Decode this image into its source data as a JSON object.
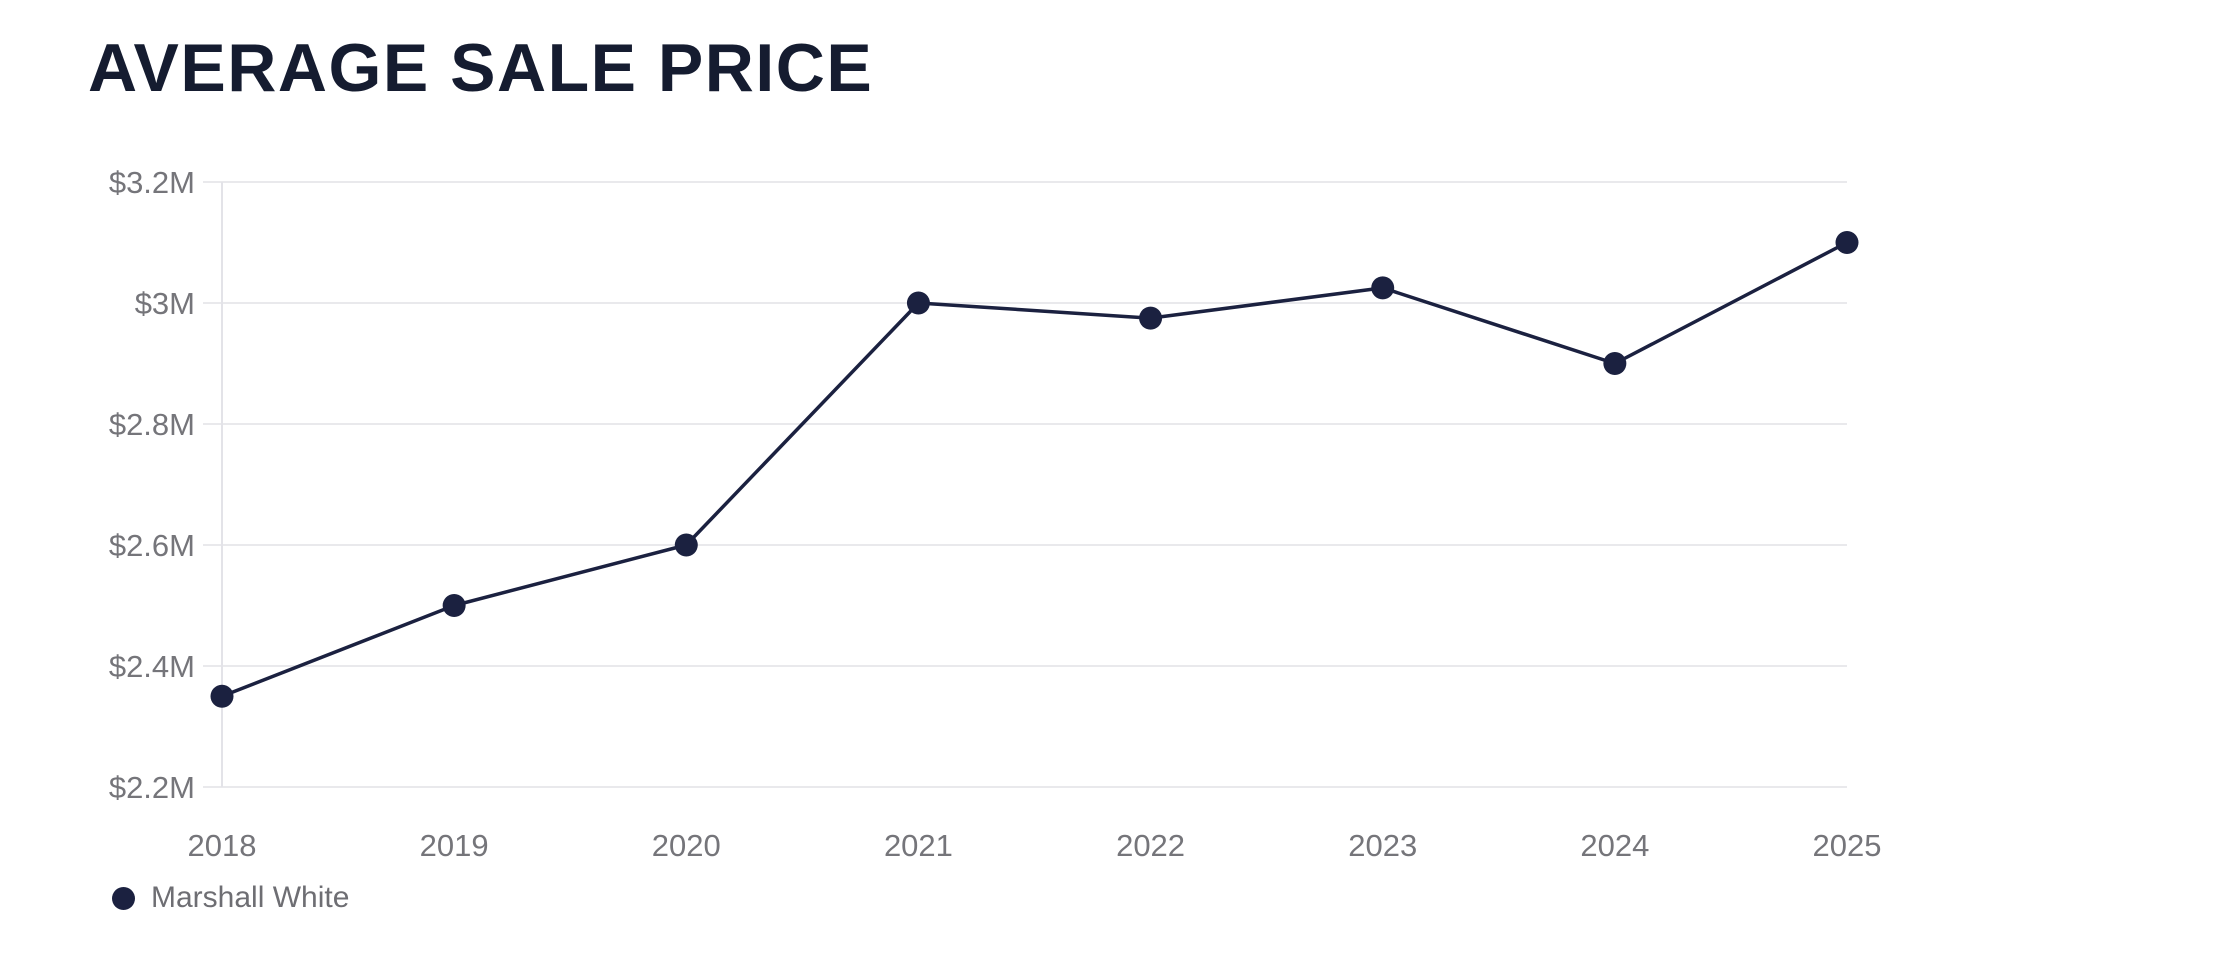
{
  "title": "AVERAGE SALE PRICE",
  "legend": {
    "label": "Marshall White"
  },
  "chart_data": {
    "type": "line",
    "title": "AVERAGE SALE PRICE",
    "categories": [
      "2018",
      "2019",
      "2020",
      "2021",
      "2022",
      "2023",
      "2024",
      "2025"
    ],
    "series": [
      {
        "name": "Marshall White",
        "values": [
          2.35,
          2.5,
          2.6,
          3.0,
          2.975,
          3.025,
          2.9,
          3.1
        ],
        "color": "#1B2140"
      }
    ],
    "units": "millions USD",
    "xlabel": "",
    "ylabel": "",
    "ylim": [
      2.2,
      3.2
    ],
    "yticks": [
      {
        "value": 3.2,
        "label": "$3.2M"
      },
      {
        "value": 3.0,
        "label": "$3M"
      },
      {
        "value": 2.8,
        "label": "$2.8M"
      },
      {
        "value": 2.6,
        "label": "$2.6M"
      },
      {
        "value": 2.4,
        "label": "$2.4M"
      },
      {
        "value": 2.2,
        "label": "$2.2M"
      }
    ],
    "grid": "horizontal",
    "legend_position": "bottom-left",
    "marker": "filled-circle",
    "colors": {
      "line": "#1B2140",
      "point": "#1B2140",
      "grid": "#E9E9EC",
      "axis": "#E3E3E8",
      "tick_label": "#75757A",
      "title": "#151C30",
      "legend_label": "#6E6E73",
      "background": "#FFFFFF"
    }
  }
}
